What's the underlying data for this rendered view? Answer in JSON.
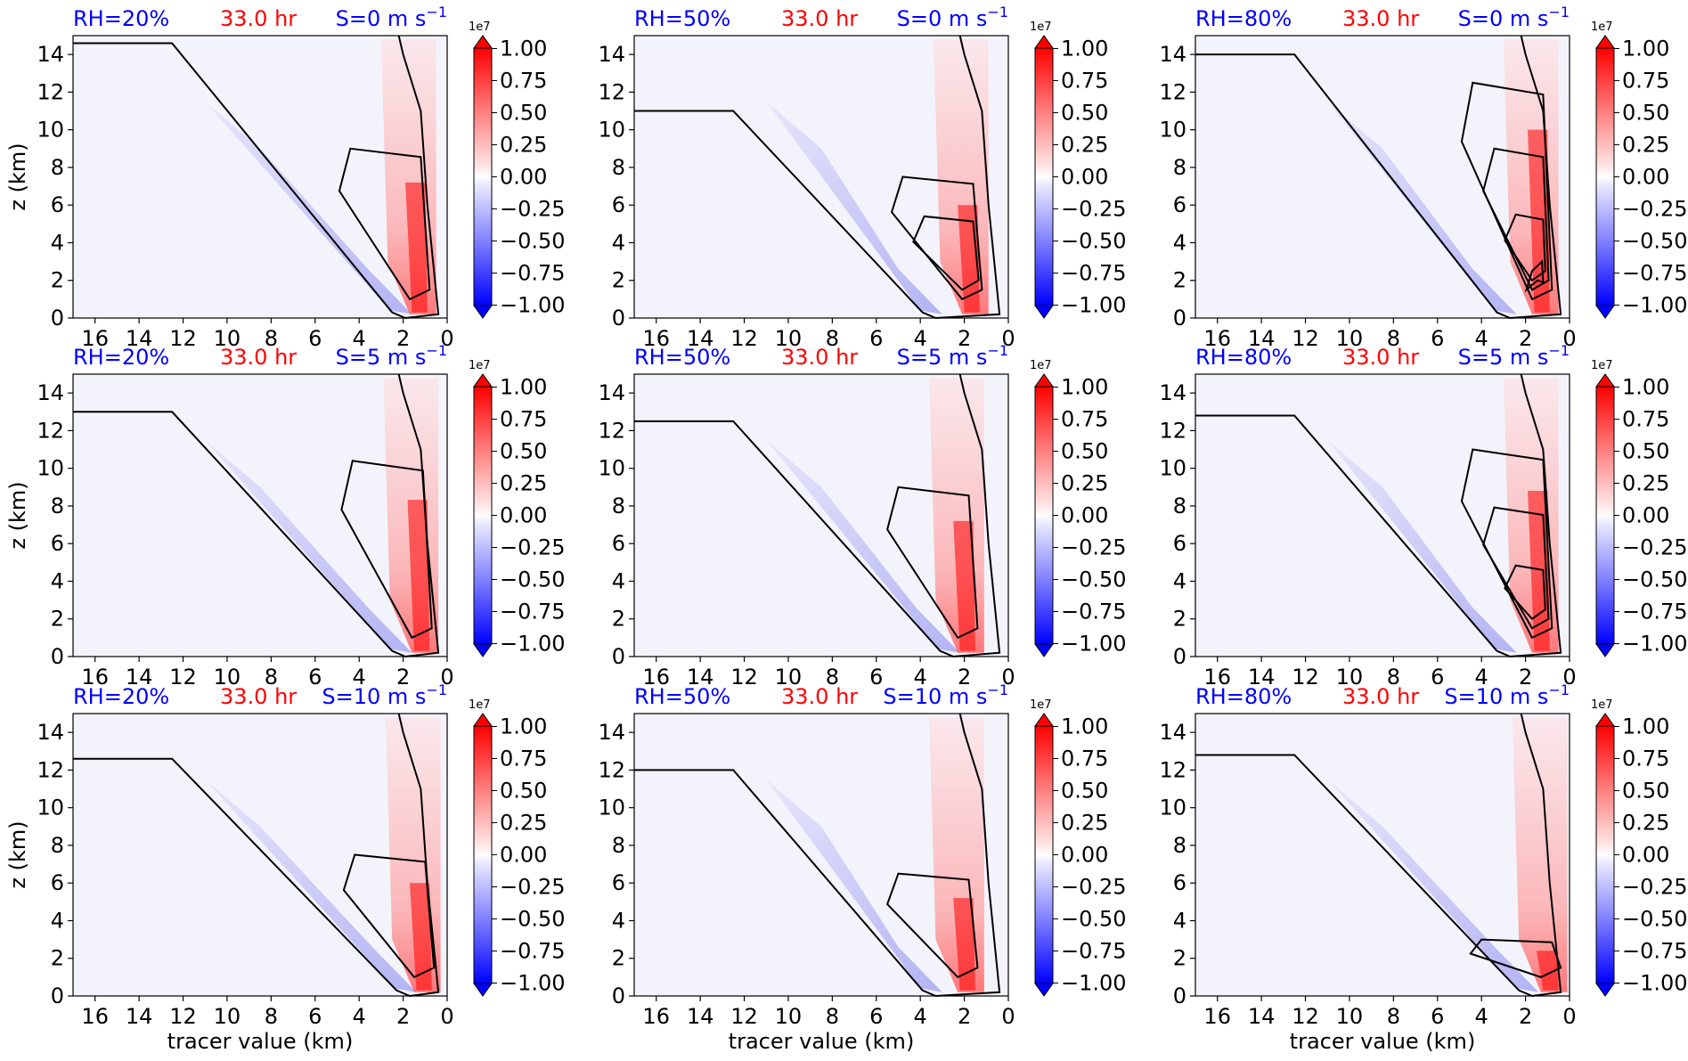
{
  "colors": {
    "rh_title": "#0000ff",
    "time_title": "#ff0000",
    "shear_title": "#0000ff",
    "positive": "#ff0000",
    "negative": "#0000ff",
    "near_zero": "#f3f3fb",
    "contour": "#000000"
  },
  "chart_data": {
    "type": "heatmap",
    "layout": "3x3 grid, shared axes",
    "xlabel": "tracer value (km)",
    "ylabel": "z (km)",
    "xlim": [
      17,
      0
    ],
    "ylim": [
      0,
      15
    ],
    "x_ticks": [
      "16",
      "14",
      "12",
      "10",
      "8",
      "6",
      "4",
      "2",
      "0"
    ],
    "y_ticks": [
      "0",
      "2",
      "4",
      "6",
      "8",
      "10",
      "12",
      "14"
    ],
    "x_tick_values": [
      16,
      14,
      12,
      10,
      8,
      6,
      4,
      2,
      0
    ],
    "y_tick_values": [
      0,
      2,
      4,
      6,
      8,
      10,
      12,
      14
    ],
    "colorbar": {
      "multiplier": "1e7",
      "ticks": [
        "1.00",
        "0.75",
        "0.50",
        "0.25",
        "0.00",
        "−0.25",
        "−0.50",
        "−0.75",
        "−1.00"
      ],
      "range": [
        -1.0,
        1.0
      ],
      "levels": 16,
      "extend": "both",
      "colormap": "bwr"
    },
    "panels": [
      {
        "rh": "RH=20%",
        "time": "33.0 hr",
        "shear": "S=0 m s",
        "shear_sup": "−1",
        "diag_top": 14.6,
        "diag_bottom": 2.2,
        "core_x": 1.4,
        "core_top": 9.0,
        "inner_contours": 1
      },
      {
        "rh": "RH=50%",
        "time": "33.0 hr",
        "shear": "S=0 m s",
        "shear_sup": "−1",
        "diag_top": 11.0,
        "diag_bottom": 3.6,
        "core_x": 1.8,
        "core_top": 7.5,
        "inner_contours": 2
      },
      {
        "rh": "RH=80%",
        "time": "33.0 hr",
        "shear": "S=0 m s",
        "shear_sup": "−1",
        "diag_top": 14.0,
        "diag_bottom": 3.0,
        "core_x": 1.4,
        "core_top": 12.5,
        "inner_contours": 4
      },
      {
        "rh": "RH=20%",
        "time": "33.0 hr",
        "shear": "S=5 m s",
        "shear_sup": "−1",
        "diag_top": 13.0,
        "diag_bottom": 2.2,
        "core_x": 1.3,
        "core_top": 10.4,
        "inner_contours": 1
      },
      {
        "rh": "RH=50%",
        "time": "33.0 hr",
        "shear": "S=5 m s",
        "shear_sup": "−1",
        "diag_top": 12.5,
        "diag_bottom": 2.8,
        "core_x": 2.0,
        "core_top": 9.0,
        "inner_contours": 1
      },
      {
        "rh": "RH=80%",
        "time": "33.0 hr",
        "shear": "S=5 m s",
        "shear_sup": "−1",
        "diag_top": 12.8,
        "diag_bottom": 3.0,
        "core_x": 1.4,
        "core_top": 11.0,
        "inner_contours": 3
      },
      {
        "rh": "RH=20%",
        "time": "33.0 hr",
        "shear": "S=10 m s",
        "shear_sup": "−1",
        "diag_top": 12.6,
        "diag_bottom": 2.0,
        "core_x": 1.2,
        "core_top": 7.5,
        "inner_contours": 1
      },
      {
        "rh": "RH=50%",
        "time": "33.0 hr",
        "shear": "S=10 m s",
        "shear_sup": "−1",
        "diag_top": 12.0,
        "diag_bottom": 3.6,
        "core_x": 2.0,
        "core_top": 6.5,
        "inner_contours": 1
      },
      {
        "rh": "RH=80%",
        "time": "33.0 hr",
        "shear": "S=10 m s",
        "shear_sup": "−1",
        "diag_top": 12.8,
        "diag_bottom": 2.0,
        "core_x": 1.0,
        "core_top": 3.0,
        "inner_contours": 1
      }
    ]
  }
}
